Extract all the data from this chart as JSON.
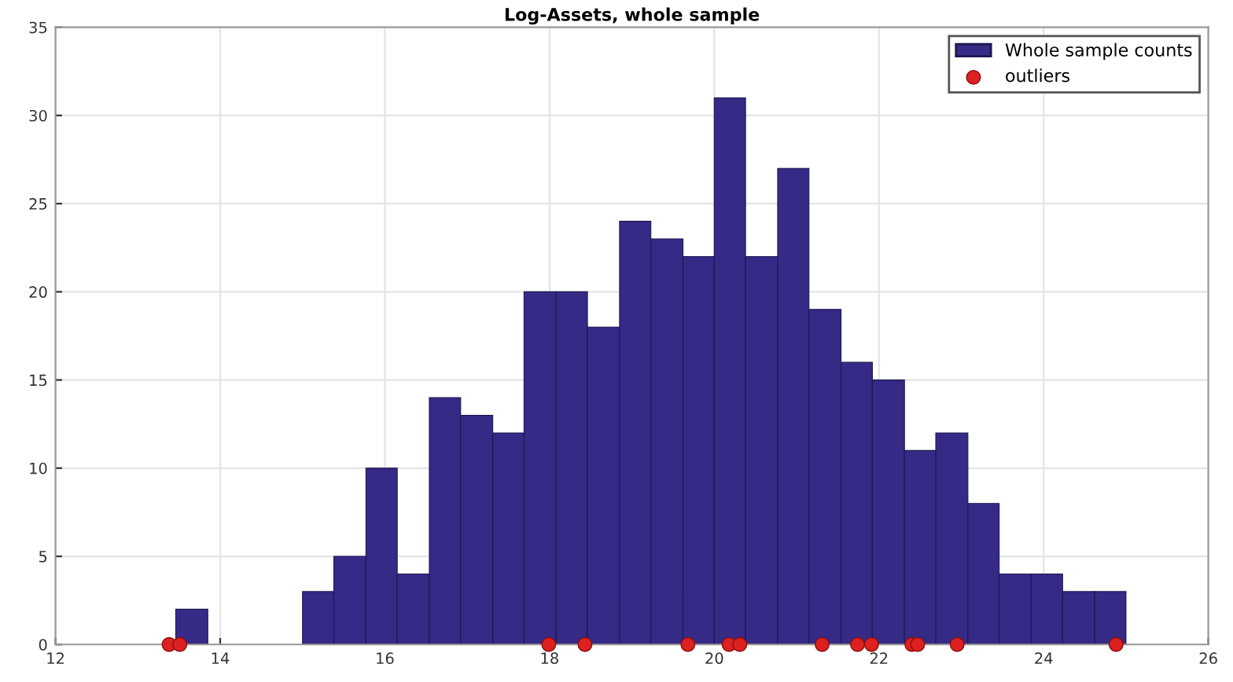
{
  "chart_data": {
    "type": "histogram",
    "title": "Log-Assets, whole sample",
    "bins": [
      13.46,
      13.85,
      15.0,
      15.38,
      15.77,
      16.15,
      16.54,
      16.92,
      17.31,
      17.69,
      18.08,
      18.46,
      18.85,
      19.23,
      19.62,
      20.0,
      20.38,
      20.77,
      21.15,
      21.54,
      21.92,
      22.31,
      22.69,
      23.08,
      23.46,
      23.85,
      24.23,
      24.62,
      25.0
    ],
    "series": [
      {
        "name": "Whole sample counts",
        "color": "#352a86",
        "values": [
          2,
          0,
          3,
          5,
          10,
          4,
          14,
          13,
          12,
          20,
          20,
          18,
          24,
          23,
          22,
          31,
          22,
          27,
          19,
          16,
          15,
          11,
          12,
          8,
          4,
          4,
          3,
          3
        ]
      },
      {
        "type": "scatter",
        "name": "outliers",
        "color": "#dd2020",
        "marker": "circle",
        "x": [
          13.38,
          13.51,
          17.99,
          18.43,
          19.68,
          20.18,
          20.31,
          21.31,
          21.74,
          21.91,
          22.4,
          22.47,
          22.95,
          24.88
        ],
        "values": [
          0,
          0,
          0,
          0,
          0,
          0,
          0,
          0,
          0,
          0,
          0,
          0,
          0,
          0
        ]
      }
    ],
    "xlim": [
      12,
      26
    ],
    "xticks": [
      12,
      14,
      16,
      18,
      20,
      22,
      24,
      26
    ],
    "ylim": [
      0,
      35
    ],
    "yticks": [
      0,
      5,
      10,
      15,
      20,
      25,
      30,
      35
    ],
    "grid": true,
    "legend": "top right"
  }
}
